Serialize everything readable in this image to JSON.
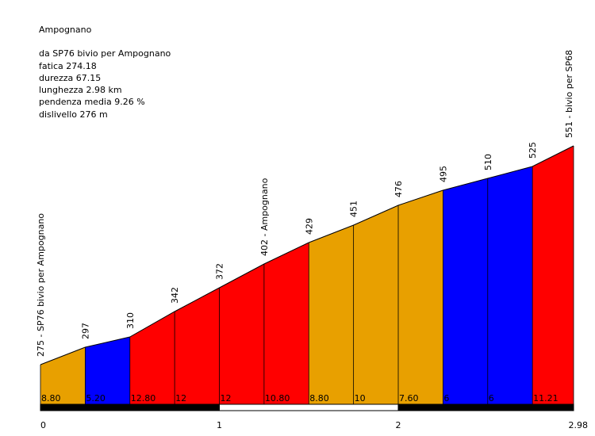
{
  "info": {
    "title": "Ampognano",
    "route": "da SP76 bivio per Ampognano",
    "fatica": "fatica 274.18",
    "durezza": "durezza 67.15",
    "lunghezza": "lunghezza 2.98 km",
    "pendenza": "pendenza media 9.26 %",
    "dislivello": "dislivello 276 m"
  },
  "chart_data": {
    "type": "area",
    "title": "Ampognano",
    "x_unit": "km",
    "y_unit": "m",
    "xlim": [
      0,
      2.98
    ],
    "x_ticks": [
      "0",
      "1",
      "2",
      "2.98"
    ],
    "points": [
      {
        "x": 0.0,
        "y": 275,
        "label": "275 - SP76 bivio per Ampognano"
      },
      {
        "x": 0.25,
        "y": 297,
        "label": "297"
      },
      {
        "x": 0.5,
        "y": 310,
        "label": "310"
      },
      {
        "x": 0.75,
        "y": 342,
        "label": "342"
      },
      {
        "x": 1.0,
        "y": 372,
        "label": "372"
      },
      {
        "x": 1.25,
        "y": 402,
        "label": "402 - Ampognano"
      },
      {
        "x": 1.5,
        "y": 429,
        "label": "429"
      },
      {
        "x": 1.75,
        "y": 451,
        "label": "451"
      },
      {
        "x": 2.0,
        "y": 476,
        "label": "476"
      },
      {
        "x": 2.25,
        "y": 495,
        "label": "495"
      },
      {
        "x": 2.5,
        "y": 510,
        "label": "510"
      },
      {
        "x": 2.75,
        "y": 525,
        "label": "525"
      },
      {
        "x": 2.98,
        "y": 551,
        "label": "551 - bivio per SP68"
      }
    ],
    "segments": [
      {
        "gradient": "8.80",
        "color": "#e8a000"
      },
      {
        "gradient": "5.20",
        "color": "#0000ff"
      },
      {
        "gradient": "12.80",
        "color": "#ff0000"
      },
      {
        "gradient": "12",
        "color": "#ff0000"
      },
      {
        "gradient": "12",
        "color": "#ff0000"
      },
      {
        "gradient": "10.80",
        "color": "#ff0000"
      },
      {
        "gradient": "8.80",
        "color": "#e8a000"
      },
      {
        "gradient": "10",
        "color": "#e8a000"
      },
      {
        "gradient": "7.60",
        "color": "#e8a000"
      },
      {
        "gradient": "6",
        "color": "#0000ff"
      },
      {
        "gradient": "6",
        "color": "#0000ff"
      },
      {
        "gradient": "11.21",
        "color": "#ff0000"
      }
    ]
  }
}
